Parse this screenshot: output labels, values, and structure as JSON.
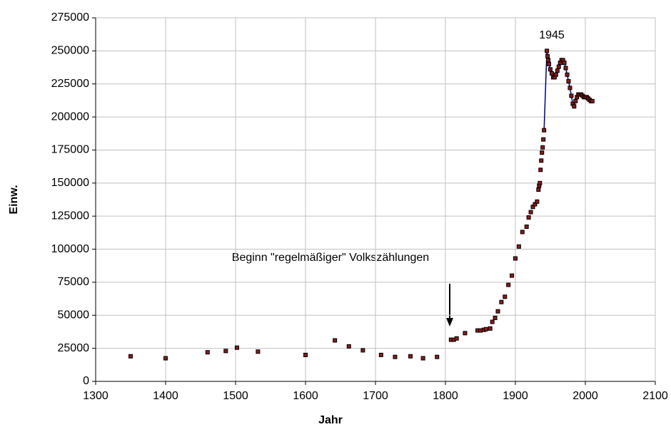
{
  "chart_data": {
    "type": "scatter",
    "x_label": "Jahr",
    "y_label": "Einw.",
    "annotations": [
      "1945",
      "Beginn \"regelmäßiger\" Volkszählungen"
    ],
    "xlim": [
      1300,
      2100
    ],
    "xticks": [
      1300,
      1400,
      1500,
      1600,
      1700,
      1800,
      1900,
      2000,
      2100
    ],
    "ylim": [
      0,
      275000
    ],
    "yticks": [
      0,
      25000,
      50000,
      75000,
      100000,
      125000,
      150000,
      175000,
      200000,
      225000,
      250000,
      275000
    ],
    "grid": true,
    "series": [
      {
        "color": "#8b1a1a",
        "line": false,
        "x": [
          1350,
          1400,
          1460,
          1486,
          1502,
          1532,
          1600,
          1642,
          1662,
          1682,
          1708,
          1728,
          1750,
          1768,
          1788,
          1808,
          1812,
          1816,
          1828,
          1846,
          1850,
          1855,
          1858,
          1864,
          1867,
          1871,
          1875,
          1880,
          1885,
          1890,
          1895,
          1900,
          1905,
          1910,
          1916,
          1919,
          1922,
          1925,
          1928,
          1931,
          1933,
          1934,
          1935,
          1936,
          1937,
          1938,
          1939,
          1940
        ],
        "values": [
          19000,
          17500,
          22000,
          23000,
          25500,
          22500,
          20000,
          31000,
          26500,
          23500,
          20000,
          18500,
          19000,
          17500,
          18500,
          31500,
          31500,
          32500,
          36500,
          38500,
          38500,
          39000,
          39500,
          40000,
          45000,
          48000,
          53000,
          60000,
          64000,
          73000,
          80000,
          93000,
          102000,
          113000,
          117000,
          124000,
          128000,
          132000,
          134000,
          136000,
          145000,
          148000,
          150000,
          160000,
          167000,
          173000,
          177000,
          183000
        ]
      },
      {
        "color": "#8b1a1a",
        "line": true,
        "line_color": "#000080",
        "x": [
          1941,
          1945,
          1946,
          1947,
          1948,
          1950,
          1952,
          1954,
          1956,
          1958,
          1960,
          1962,
          1964,
          1966,
          1968,
          1970,
          1972,
          1974,
          1976,
          1978,
          1980,
          1982,
          1984,
          1986,
          1988,
          1990,
          1992,
          1994,
          1996,
          1998,
          2000,
          2002,
          2004,
          2006,
          2008,
          2010
        ],
        "values": [
          190000,
          250000,
          246000,
          243000,
          240000,
          236000,
          233000,
          230000,
          230000,
          232000,
          235000,
          238000,
          241000,
          243000,
          243000,
          241000,
          237000,
          232000,
          227000,
          222000,
          216000,
          210000,
          208000,
          212000,
          215000,
          217000,
          217000,
          217000,
          216000,
          215000,
          215000,
          215000,
          214000,
          213000,
          212000,
          212000
        ]
      }
    ]
  }
}
